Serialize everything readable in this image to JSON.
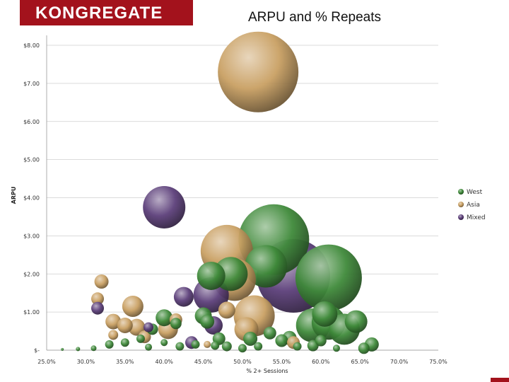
{
  "brand": {
    "logo_text": "KONGREGATE",
    "accent_color": "#a3121c"
  },
  "chart_data": {
    "type": "scatter",
    "subtype": "bubble",
    "title": "ARPU and % Repeats",
    "xlabel": "% 2+ Sessions",
    "ylabel": "ARPU",
    "xlim": [
      0.25,
      0.75
    ],
    "ylim": [
      0,
      8
    ],
    "x_ticks": [
      {
        "value": 0.25,
        "label": "25.0%"
      },
      {
        "value": 0.3,
        "label": "30.0%"
      },
      {
        "value": 0.35,
        "label": "35.0%"
      },
      {
        "value": 0.4,
        "label": "40.0%"
      },
      {
        "value": 0.45,
        "label": "45.0%"
      },
      {
        "value": 0.5,
        "label": "50.0%"
      },
      {
        "value": 0.55,
        "label": "55.0%"
      },
      {
        "value": 0.6,
        "label": "60.0%"
      },
      {
        "value": 0.65,
        "label": "65.0%"
      },
      {
        "value": 0.7,
        "label": "70.0%"
      },
      {
        "value": 0.75,
        "label": "75.0%"
      }
    ],
    "y_ticks": [
      {
        "value": 0,
        "label": "$-"
      },
      {
        "value": 1,
        "label": "$1.00"
      },
      {
        "value": 2,
        "label": "$2.00"
      },
      {
        "value": 3,
        "label": "$3.00"
      },
      {
        "value": 4,
        "label": "$4.00"
      },
      {
        "value": 5,
        "label": "$5.00"
      },
      {
        "value": 6,
        "label": "$6.00"
      },
      {
        "value": 7,
        "label": "$7.00"
      },
      {
        "value": 8,
        "label": "$8.00"
      }
    ],
    "grid": true,
    "legend_position": "right",
    "series": [
      {
        "name": "West",
        "color": "#3f8a3a",
        "points": [
          {
            "x": 0.54,
            "y": 2.9,
            "size": 50
          },
          {
            "x": 0.61,
            "y": 1.9,
            "size": 47
          },
          {
            "x": 0.53,
            "y": 2.2,
            "size": 30
          },
          {
            "x": 0.485,
            "y": 2.0,
            "size": 24
          },
          {
            "x": 0.46,
            "y": 1.95,
            "size": 20
          },
          {
            "x": 0.59,
            "y": 0.65,
            "size": 24
          },
          {
            "x": 0.61,
            "y": 0.72,
            "size": 24
          },
          {
            "x": 0.63,
            "y": 0.55,
            "size": 22
          },
          {
            "x": 0.645,
            "y": 0.75,
            "size": 16
          },
          {
            "x": 0.605,
            "y": 0.95,
            "size": 18
          },
          {
            "x": 0.4,
            "y": 0.85,
            "size": 12
          },
          {
            "x": 0.45,
            "y": 0.9,
            "size": 12
          },
          {
            "x": 0.455,
            "y": 0.75,
            "size": 10
          },
          {
            "x": 0.415,
            "y": 0.7,
            "size": 8
          },
          {
            "x": 0.51,
            "y": 0.3,
            "size": 10
          },
          {
            "x": 0.55,
            "y": 0.25,
            "size": 9
          },
          {
            "x": 0.47,
            "y": 0.3,
            "size": 9
          },
          {
            "x": 0.665,
            "y": 0.15,
            "size": 10
          },
          {
            "x": 0.655,
            "y": 0.05,
            "size": 8
          },
          {
            "x": 0.59,
            "y": 0.12,
            "size": 8
          },
          {
            "x": 0.56,
            "y": 0.32,
            "size": 10
          },
          {
            "x": 0.385,
            "y": 0.55,
            "size": 8
          },
          {
            "x": 0.37,
            "y": 0.3,
            "size": 6
          },
          {
            "x": 0.35,
            "y": 0.2,
            "size": 6
          },
          {
            "x": 0.33,
            "y": 0.15,
            "size": 6
          },
          {
            "x": 0.31,
            "y": 0.05,
            "size": 4
          },
          {
            "x": 0.42,
            "y": 0.1,
            "size": 6
          },
          {
            "x": 0.44,
            "y": 0.15,
            "size": 6
          },
          {
            "x": 0.48,
            "y": 0.1,
            "size": 7
          },
          {
            "x": 0.5,
            "y": 0.05,
            "size": 6
          },
          {
            "x": 0.52,
            "y": 0.1,
            "size": 6
          },
          {
            "x": 0.57,
            "y": 0.1,
            "size": 6
          },
          {
            "x": 0.62,
            "y": 0.05,
            "size": 5
          },
          {
            "x": 0.29,
            "y": 0.03,
            "size": 3
          },
          {
            "x": 0.27,
            "y": 0.02,
            "size": 2
          },
          {
            "x": 0.38,
            "y": 0.08,
            "size": 5
          },
          {
            "x": 0.4,
            "y": 0.2,
            "size": 5
          },
          {
            "x": 0.465,
            "y": 0.12,
            "size": 6
          },
          {
            "x": 0.535,
            "y": 0.45,
            "size": 9
          },
          {
            "x": 0.6,
            "y": 0.25,
            "size": 8
          }
        ]
      },
      {
        "name": "Asia",
        "color": "#c9a063",
        "points": [
          {
            "x": 0.52,
            "y": 7.3,
            "size": 57
          },
          {
            "x": 0.48,
            "y": 2.6,
            "size": 37
          },
          {
            "x": 0.49,
            "y": 1.85,
            "size": 30
          },
          {
            "x": 0.515,
            "y": 0.9,
            "size": 29
          },
          {
            "x": 0.36,
            "y": 1.15,
            "size": 15
          },
          {
            "x": 0.32,
            "y": 1.8,
            "size": 10
          },
          {
            "x": 0.315,
            "y": 1.35,
            "size": 9
          },
          {
            "x": 0.335,
            "y": 0.75,
            "size": 11
          },
          {
            "x": 0.35,
            "y": 0.65,
            "size": 11
          },
          {
            "x": 0.365,
            "y": 0.6,
            "size": 12
          },
          {
            "x": 0.405,
            "y": 0.55,
            "size": 14
          },
          {
            "x": 0.415,
            "y": 0.8,
            "size": 9
          },
          {
            "x": 0.505,
            "y": 0.55,
            "size": 17
          },
          {
            "x": 0.48,
            "y": 1.05,
            "size": 12
          },
          {
            "x": 0.375,
            "y": 0.35,
            "size": 9
          },
          {
            "x": 0.335,
            "y": 0.4,
            "size": 7
          },
          {
            "x": 0.565,
            "y": 0.2,
            "size": 9
          },
          {
            "x": 0.455,
            "y": 0.15,
            "size": 5
          }
        ]
      },
      {
        "name": "Mixed",
        "color": "#5c3f7a",
        "points": [
          {
            "x": 0.565,
            "y": 1.95,
            "size": 52
          },
          {
            "x": 0.4,
            "y": 3.75,
            "size": 30
          },
          {
            "x": 0.46,
            "y": 1.45,
            "size": 25
          },
          {
            "x": 0.425,
            "y": 1.4,
            "size": 14
          },
          {
            "x": 0.463,
            "y": 0.65,
            "size": 13
          },
          {
            "x": 0.315,
            "y": 1.1,
            "size": 9
          },
          {
            "x": 0.435,
            "y": 0.2,
            "size": 9
          },
          {
            "x": 0.38,
            "y": 0.6,
            "size": 7
          }
        ]
      }
    ]
  }
}
